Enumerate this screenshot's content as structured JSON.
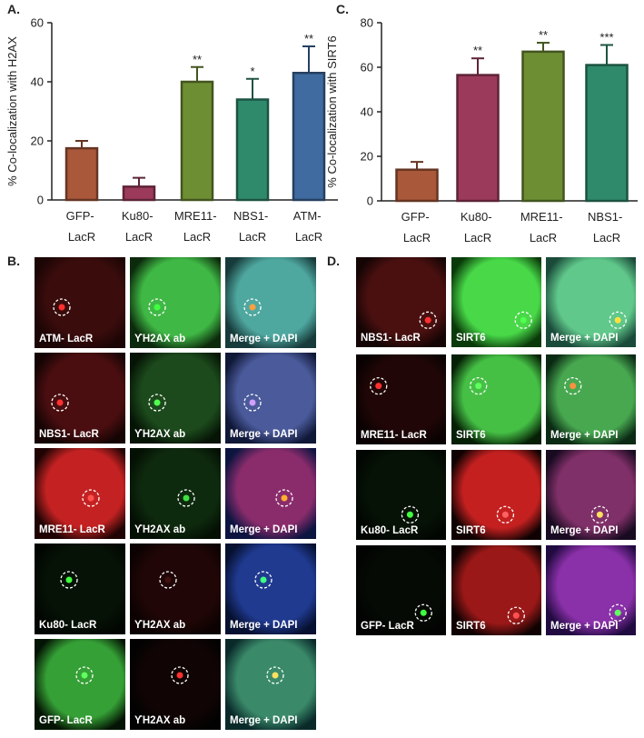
{
  "chart_data": [
    {
      "type": "bar",
      "panel": "A.",
      "ylabel": "% Co-localization with   H2AX",
      "categories": [
        "GFP- LacR",
        "Ku80- LacR",
        "MRE11- LacR",
        "NBS1- LacR",
        "ATM- LacR"
      ],
      "values": [
        17.5,
        4.5,
        40,
        34,
        43
      ],
      "errors": [
        2.5,
        3,
        5,
        7,
        9
      ],
      "significance": [
        null,
        null,
        "**",
        "*",
        "**"
      ],
      "colors": [
        "#a9583a",
        "#9c3a5c",
        "#6e8e34",
        "#2f8a6c",
        "#3f6ba0"
      ],
      "ylim": [
        0,
        60
      ],
      "yticks": [
        0,
        20,
        40,
        60
      ]
    },
    {
      "type": "bar",
      "panel": "C.",
      "ylabel": "% Co-localization with SIRT6",
      "categories": [
        "GFP- LacR",
        "Ku80- LacR",
        "MRE11- LacR",
        "NBS1- LacR"
      ],
      "values": [
        14,
        56.5,
        67,
        61
      ],
      "errors": [
        3.5,
        7.5,
        4,
        9
      ],
      "significance": [
        null,
        "**",
        "**",
        "***"
      ],
      "colors": [
        "#a9583a",
        "#9c3a5c",
        "#6e8e34",
        "#2f8a6c"
      ],
      "ylim": [
        0,
        80
      ],
      "yticks": [
        0,
        20,
        40,
        60,
        80
      ]
    }
  ],
  "micrographs": {
    "B": {
      "panel": "B.",
      "rows": [
        [
          "ATM- LacR",
          "ϒH2AX ab",
          "Merge + DAPI"
        ],
        [
          "NBS1- LacR",
          "ϒH2AX ab",
          "Merge + DAPI"
        ],
        [
          "MRE11- LacR",
          "ϒH2AX ab",
          "Merge + DAPI"
        ],
        [
          "Ku80- LacR",
          "ϒH2AX ab",
          "Merge + DAPI"
        ],
        [
          "GFP- LacR",
          "ϒH2AX ab",
          "Merge + DAPI"
        ]
      ]
    },
    "D": {
      "panel": "D.",
      "rows": [
        [
          "NBS1- LacR",
          "SIRT6",
          "Merge + DAPI"
        ],
        [
          "MRE11- LacR",
          "SIRT6",
          "Merge + DAPI"
        ],
        [
          "Ku80- LacR",
          "SIRT6",
          "Merge + DAPI"
        ],
        [
          "GFP- LacR",
          "SIRT6",
          "Merge + DAPI"
        ]
      ]
    }
  }
}
